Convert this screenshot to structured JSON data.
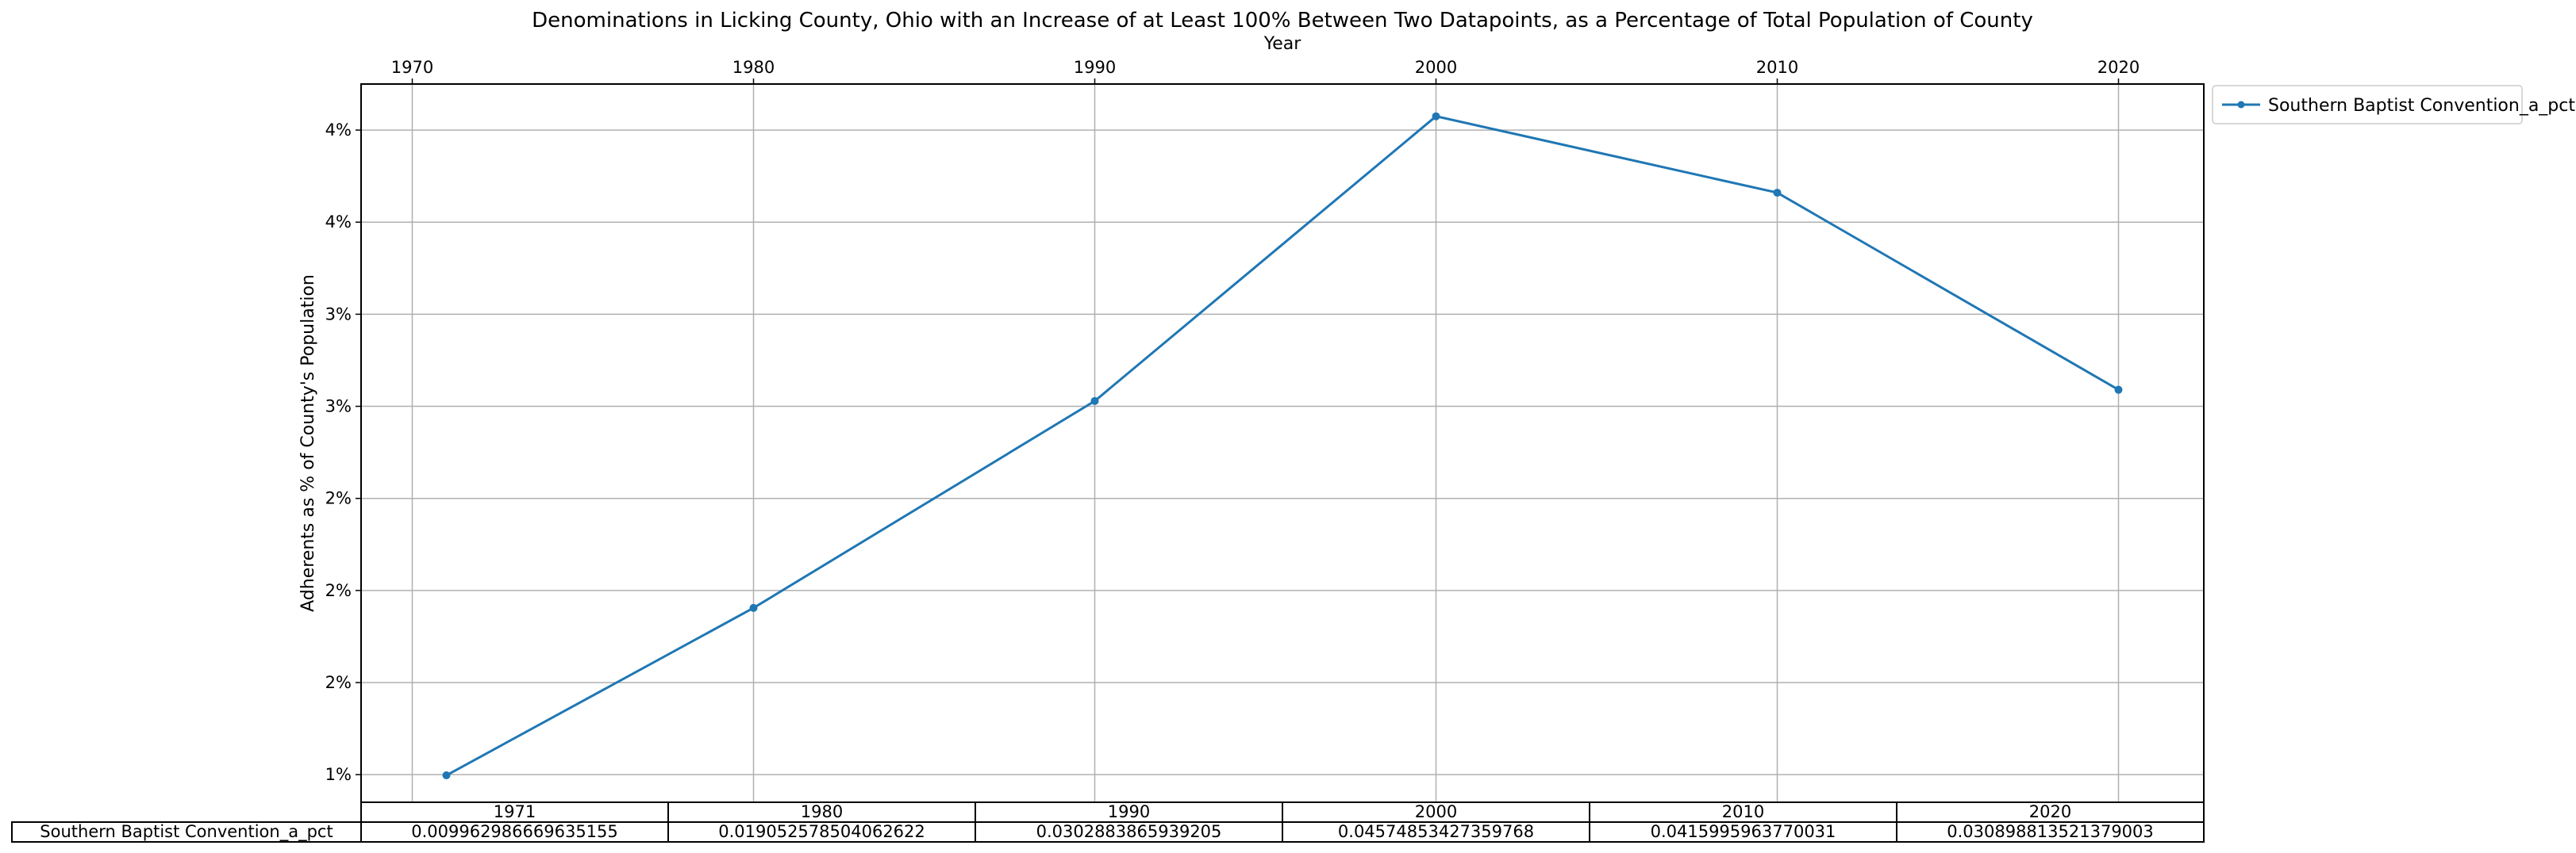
{
  "chart_data": {
    "type": "line",
    "title": "Denominations in Licking County, Ohio with an Increase of at Least 100% Between Two Datapoints, as a Percentage of Total Population of County",
    "xlabel": "Year",
    "ylabel": "Adherents as % of County's Population",
    "x_ticks": [
      "1970",
      "1980",
      "1990",
      "2000",
      "2010",
      "2020"
    ],
    "y_ticks": [
      "1%",
      "2%",
      "2%",
      "2%",
      "3%",
      "3%",
      "4%",
      "4%"
    ],
    "x": [
      1971,
      1980,
      1990,
      2000,
      2010,
      2020
    ],
    "xlim": [
      1968.5,
      2022.5
    ],
    "ylim": [
      0.0085,
      0.0475
    ],
    "y_tick_values": [
      0.01,
      0.015,
      0.02,
      0.025,
      0.03,
      0.035,
      0.04,
      0.045
    ],
    "grid": true,
    "legend_position": "outside top-right",
    "color": "#1f77b4",
    "series": [
      {
        "name": "Southern Baptist Convention_a_pct",
        "values": [
          0.009962986669635155,
          0.019052578504062622,
          0.03028838659392,
          0.04574853427359768,
          0.0415995963770031,
          0.030898813521379003
        ]
      }
    ],
    "table": {
      "columns": [
        "1971",
        "1980",
        "1990",
        "2000",
        "2010",
        "2020"
      ],
      "row_label": "Southern Baptist Convention_a_pct",
      "cells": [
        "0.009962986669635155",
        "0.019052578504062622",
        "0.0302883865939205",
        "0.04574853427359768",
        "0.0415995963770031",
        "0.030898813521379003"
      ]
    }
  }
}
